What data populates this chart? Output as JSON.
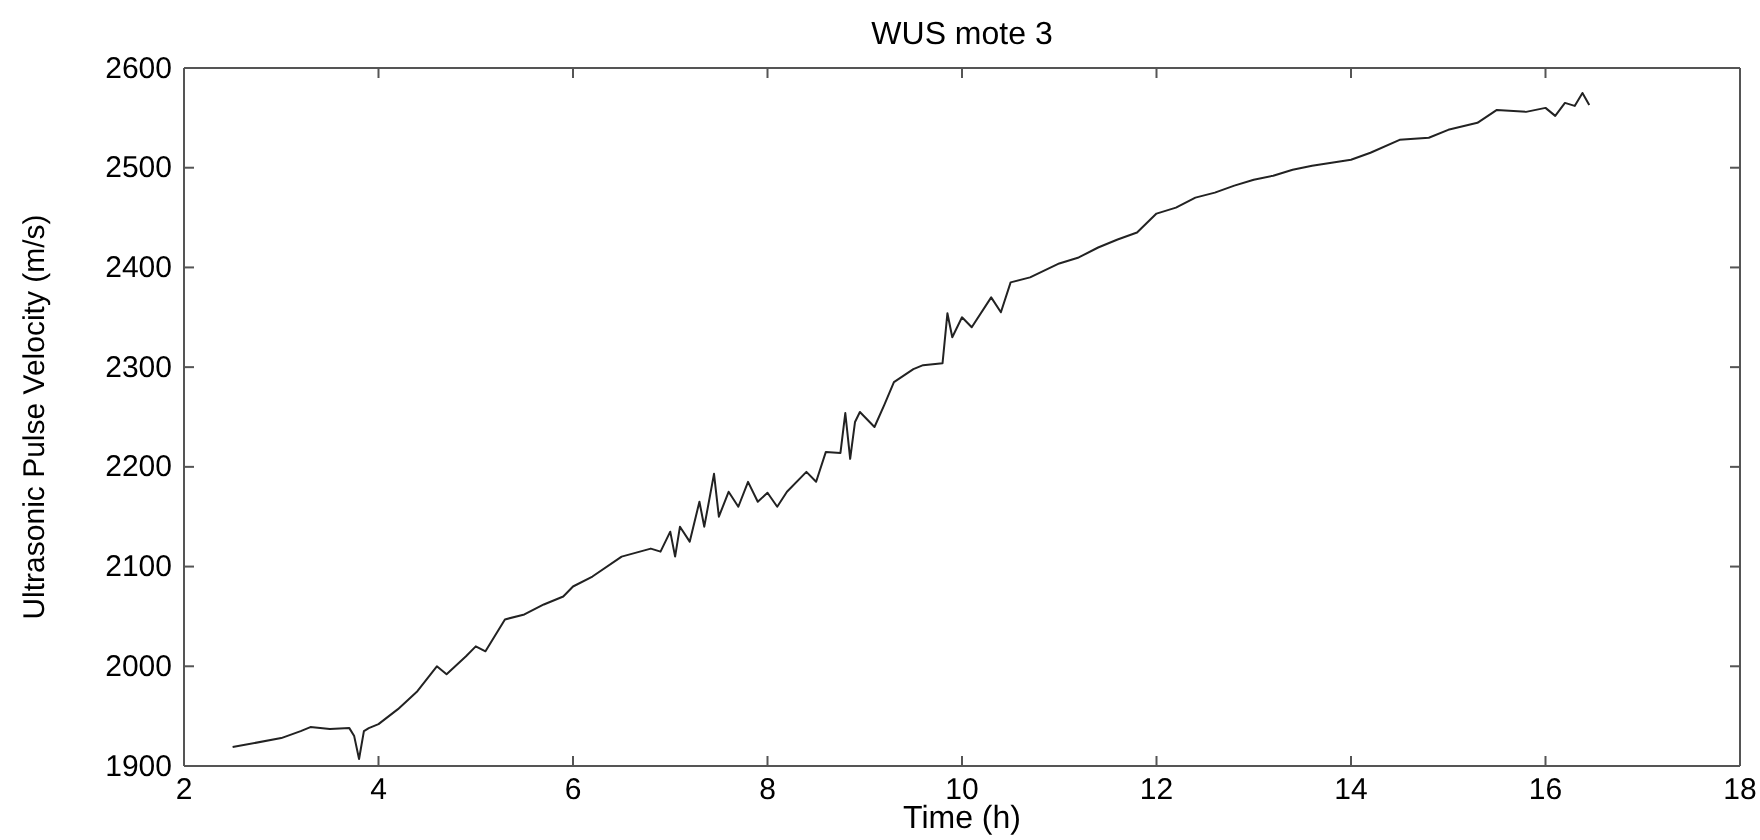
{
  "chart_data": {
    "type": "line",
    "title": "WUS mote 3",
    "xlabel": "Time (h)",
    "ylabel": "Ultrasonic Pulse Velocity (m/s)",
    "x": [
      2.5,
      3.0,
      3.2,
      3.3,
      3.5,
      3.7,
      3.75,
      3.8,
      3.85,
      3.9,
      4.0,
      4.2,
      4.4,
      4.6,
      4.7,
      4.9,
      5.0,
      5.1,
      5.3,
      5.5,
      5.7,
      5.9,
      6.0,
      6.2,
      6.5,
      6.8,
      6.9,
      7.0,
      7.05,
      7.1,
      7.2,
      7.3,
      7.35,
      7.45,
      7.5,
      7.6,
      7.7,
      7.8,
      7.9,
      8.0,
      8.1,
      8.2,
      8.4,
      8.5,
      8.6,
      8.75,
      8.8,
      8.85,
      8.9,
      8.95,
      9.1,
      9.2,
      9.3,
      9.5,
      9.6,
      9.8,
      9.85,
      9.9,
      10.0,
      10.1,
      10.3,
      10.4,
      10.5,
      10.7,
      11.0,
      11.2,
      11.4,
      11.6,
      11.8,
      12.0,
      12.2,
      12.4,
      12.6,
      12.8,
      13.0,
      13.2,
      13.4,
      13.6,
      13.8,
      14.0,
      14.2,
      14.5,
      14.8,
      15.0,
      15.3,
      15.5,
      15.8,
      16.0,
      16.1,
      16.2,
      16.3,
      16.38,
      16.45
    ],
    "series": [
      {
        "color": "#222222",
        "values": [
          1919,
          1928,
          1935,
          1939,
          1937,
          1938,
          1930,
          1907,
          1935,
          1938,
          1942,
          1957,
          1975,
          2000,
          1992,
          2010,
          2020,
          2015,
          2047,
          2052,
          2062,
          2070,
          2080,
          2090,
          2110,
          2118,
          2115,
          2135,
          2110,
          2140,
          2125,
          2165,
          2140,
          2193,
          2150,
          2175,
          2160,
          2185,
          2165,
          2174,
          2160,
          2175,
          2195,
          2185,
          2215,
          2214,
          2254,
          2208,
          2245,
          2255,
          2240,
          2262,
          2285,
          2298,
          2302,
          2304,
          2354,
          2330,
          2350,
          2340,
          2370,
          2355,
          2385,
          2390,
          2404,
          2410,
          2420,
          2428,
          2435,
          2454,
          2460,
          2470,
          2475,
          2482,
          2488,
          2492,
          2498,
          2502,
          2505,
          2508,
          2515,
          2528,
          2530,
          2538,
          2545,
          2558,
          2556,
          2560,
          2552,
          2565,
          2562,
          2575,
          2563
        ]
      }
    ],
    "xlim": [
      2,
      18
    ],
    "xticks": [
      2,
      4,
      6,
      8,
      10,
      12,
      14,
      16,
      18
    ],
    "ylim": [
      1900,
      2600
    ],
    "yticks": [
      1900,
      2000,
      2100,
      2200,
      2300,
      2400,
      2500,
      2600
    ],
    "grid": false,
    "marker": "none",
    "line_style": "solid"
  }
}
